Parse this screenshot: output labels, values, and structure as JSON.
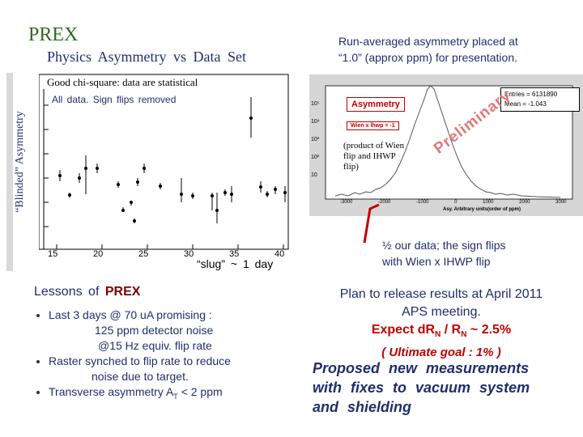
{
  "title": "PREX",
  "subtitle": "Physics Asymmetry vs Data Set",
  "topright_note": {
    "line1": "Run-averaged asymmetry placed at",
    "line2": "“1.0” (approx ppm) for presentation."
  },
  "left_plot": {
    "note1": "Good chi-square: data are statistical",
    "note2": "All data. Sign flips removed",
    "ylabel": "“Blinded” Asymmetry",
    "xlabel": "“slug” ~ 1 day",
    "xticks": [
      "15",
      "20",
      "25",
      "30",
      "35",
      "40"
    ]
  },
  "histogram": {
    "title": "Asymmetry",
    "stats_entries": "Entries = 6131890",
    "stats_mean": "Mean = -1.043",
    "flip_label": "Wien x lhwp = -1",
    "xaxis_label": "Asy. Arbitrary units(order of ppm)",
    "xticks": [
      "-3000",
      "-2000",
      "-1000",
      "0",
      "1000",
      "2000",
      "3000"
    ],
    "yticks": [
      "10⁵",
      "10⁴",
      "10³",
      "10²",
      "10"
    ],
    "watermark": "Preliminary",
    "annotation": "(product of Wien flip and IHWP flip)"
  },
  "half_note": {
    "line1": "½ our data; the sign flips",
    "line2": "with Wien x IHWP flip"
  },
  "lessons": {
    "heading_prefix": "Lessons of",
    "heading_highlight": "PREX",
    "items": [
      {
        "l1": "Last 3 days @ 70 uA promising :",
        "l2": "125 ppm detector noise",
        "l3": "@15 Hz equiv. flip rate"
      },
      {
        "l1": "Raster synched to flip rate to reduce",
        "l2": "noise due to target."
      },
      {
        "l1": "Transverse asymmetry A",
        "sub": "T",
        "l2": "< 2 ppm"
      }
    ]
  },
  "plan": {
    "line1": "Plan to release results at April 2011",
    "line2": "APS meeting.",
    "line3_prefix": "Expect dR",
    "line3_sub": "N",
    "line3_mid": "/ R",
    "line3_sub2": "N",
    "line3_suffix": "~ 2.5%",
    "line4": "( Ultimate goal : 1% )",
    "proposed": [
      "Proposed new measurements",
      "with fixes to vacuum system",
      "and shielding"
    ]
  },
  "colors": {
    "accent_green": "#2e6b1f",
    "navy": "#1f2f6b",
    "red": "#c00000",
    "dark_red": "#7a0000"
  }
}
